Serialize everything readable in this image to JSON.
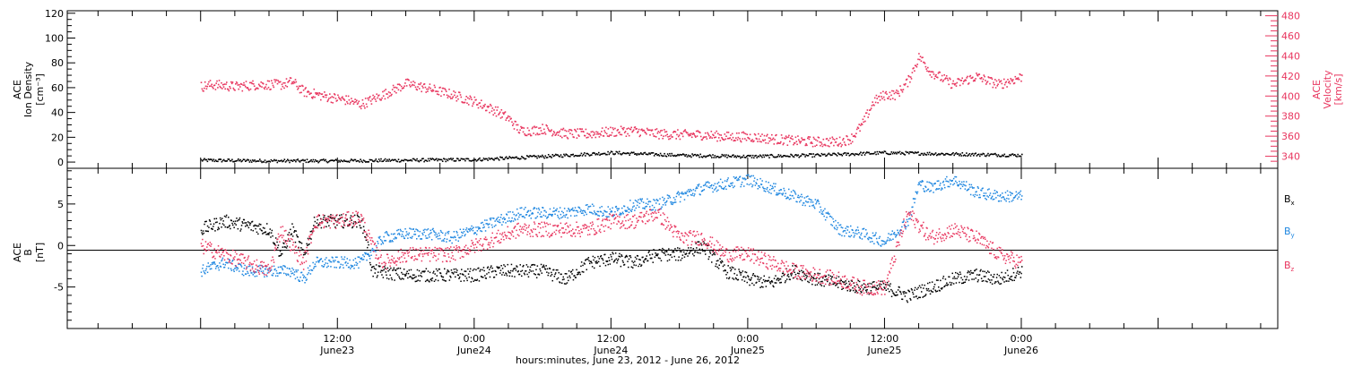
{
  "chart_data": [
    {
      "type": "scatter",
      "panel": "plasma",
      "ylabel_left": [
        "ACE",
        "Ion Density",
        "[cm⁻³]"
      ],
      "ylabel_right": [
        "ACE",
        "Velocity",
        "[km/s]"
      ],
      "left_ylim": [
        -5,
        122
      ],
      "left_ticks": [
        0,
        20,
        40,
        60,
        80,
        100,
        120
      ],
      "left_tick_labels": [
        "0",
        "20",
        "40",
        "60",
        "80",
        "100",
        "120"
      ],
      "right_ylim": [
        328,
        485
      ],
      "right_ticks": [
        340,
        360,
        380,
        400,
        420,
        440,
        460,
        480
      ],
      "right_tick_labels": [
        "340",
        "360",
        "380",
        "400",
        "420",
        "440",
        "460",
        "480"
      ],
      "series": [
        {
          "axis": "left",
          "color": "#000000",
          "x_hours": [
            0,
            6,
            12,
            18,
            24,
            30,
            36,
            42,
            48,
            54,
            60,
            66,
            72
          ],
          "y": [
            2,
            1.5,
            1.5,
            2,
            2.5,
            5,
            8,
            6,
            5,
            6,
            8,
            7,
            6
          ]
        },
        {
          "axis": "right",
          "color": "#e8365f",
          "x_hours": [
            0,
            1,
            3,
            5,
            7,
            8,
            9,
            11,
            13,
            14,
            16,
            18,
            20,
            22,
            24,
            26,
            27,
            28,
            29,
            30,
            32,
            34,
            36,
            38,
            40,
            42,
            44,
            46,
            48,
            50,
            52,
            54,
            56,
            57,
            58,
            59,
            60,
            61,
            62,
            63,
            64,
            66,
            68,
            70,
            72
          ],
          "y": [
            410,
            412,
            410,
            412,
            412,
            415,
            405,
            400,
            396,
            392,
            402,
            413,
            408,
            402,
            395,
            385,
            378,
            366,
            366,
            368,
            363,
            363,
            365,
            366,
            363,
            362,
            362,
            360,
            360,
            358,
            356,
            355,
            355,
            358,
            372,
            395,
            402,
            402,
            415,
            440,
            425,
            412,
            420,
            412,
            420
          ]
        }
      ]
    },
    {
      "type": "scatter",
      "panel": "magnetic-field",
      "ylabel_left": [
        "ACE",
        "B",
        "[nT]"
      ],
      "ylim": [
        -10,
        9.3
      ],
      "ticks": [
        -5,
        0,
        5
      ],
      "tick_labels": [
        "-5",
        "0",
        "5"
      ],
      "series": [
        {
          "name": "Bx",
          "color": "#000000",
          "x_hours": [
            0,
            2,
            4,
            6,
            7,
            8,
            9,
            10,
            12,
            14,
            14.5,
            15,
            18,
            20,
            22,
            24,
            26,
            28,
            30,
            32,
            34,
            36,
            38,
            40,
            42,
            44,
            46,
            48,
            50,
            52,
            54,
            56,
            58,
            60,
            62,
            64,
            66,
            68,
            70,
            72
          ],
          "y": [
            2,
            3,
            2.5,
            2,
            -1,
            2,
            -1,
            3,
            3,
            3,
            1,
            -3,
            -3.5,
            -3.5,
            -3.5,
            -3.5,
            -3,
            -3,
            -3,
            -4,
            -2,
            -1.5,
            -2,
            -1,
            -1,
            0,
            -3,
            -4,
            -4.5,
            -3,
            -4,
            -4.5,
            -5,
            -5,
            -6,
            -5,
            -4,
            -3.5,
            -4,
            -3
          ]
        },
        {
          "name": "By",
          "color": "#1f87e0",
          "x_hours": [
            0,
            2,
            4,
            6,
            8,
            9,
            10,
            12,
            14,
            16,
            18,
            20,
            22,
            24,
            26,
            28,
            30,
            32,
            34,
            36,
            38,
            40,
            42,
            44,
            46,
            48,
            50,
            52,
            54,
            56,
            58,
            60,
            62,
            63,
            64,
            66,
            68,
            70,
            72
          ],
          "y": [
            -3,
            -2,
            -3,
            -3,
            -3,
            -4,
            -2,
            -2,
            -2,
            1,
            1.5,
            1.5,
            1,
            2,
            3,
            4,
            4,
            4,
            4.5,
            4,
            5,
            5,
            6,
            7,
            7.5,
            8,
            7,
            6,
            5,
            2,
            1.5,
            0.5,
            3,
            7.5,
            7,
            8,
            6.5,
            6,
            6
          ]
        },
        {
          "name": "Bz",
          "color": "#e8365f",
          "x_hours": [
            0,
            2,
            4,
            6,
            7,
            8,
            9,
            10,
            12,
            14,
            15,
            16,
            18,
            20,
            22,
            24,
            26,
            28,
            30,
            32,
            34,
            36,
            38,
            40,
            42,
            44,
            46,
            48,
            50,
            52,
            54,
            56,
            58,
            60,
            62,
            64,
            66,
            68,
            70,
            72
          ],
          "y": [
            0,
            -1,
            -2,
            -3,
            2,
            0,
            -2,
            3,
            3,
            3.5,
            0,
            -2,
            -1,
            -1,
            -1,
            0,
            1,
            2,
            2,
            2,
            2,
            3,
            3,
            4,
            1,
            1,
            -1,
            -1,
            -2,
            -3,
            -3.5,
            -4,
            -5,
            -5,
            4,
            1,
            2,
            1,
            -1,
            -2
          ]
        }
      ],
      "legend": [
        {
          "label": "B",
          "sub": "x",
          "color": "#000000"
        },
        {
          "label": "B",
          "sub": "y",
          "color": "#1f87e0"
        },
        {
          "label": "B",
          "sub": "z",
          "color": "#e8365f"
        }
      ],
      "legend_position": "right"
    }
  ],
  "x_axis": {
    "range_hours": [
      -11.7,
      94.5
    ],
    "major_ticks": [
      {
        "hours": 12,
        "time": "12:00",
        "day": "June23"
      },
      {
        "hours": 24,
        "time": "0:00",
        "day": "June24"
      },
      {
        "hours": 36,
        "time": "12:00",
        "day": "June24"
      },
      {
        "hours": 48,
        "time": "0:00",
        "day": "June25"
      },
      {
        "hours": 60,
        "time": "12:00",
        "day": "June25"
      },
      {
        "hours": 72,
        "time": "0:00",
        "day": "June26"
      }
    ],
    "label": "hours:minutes, June 23, 2012 - June 26, 2012"
  },
  "colors": {
    "black": "#000000",
    "pink": "#e8365f",
    "blue": "#1f87e0"
  }
}
